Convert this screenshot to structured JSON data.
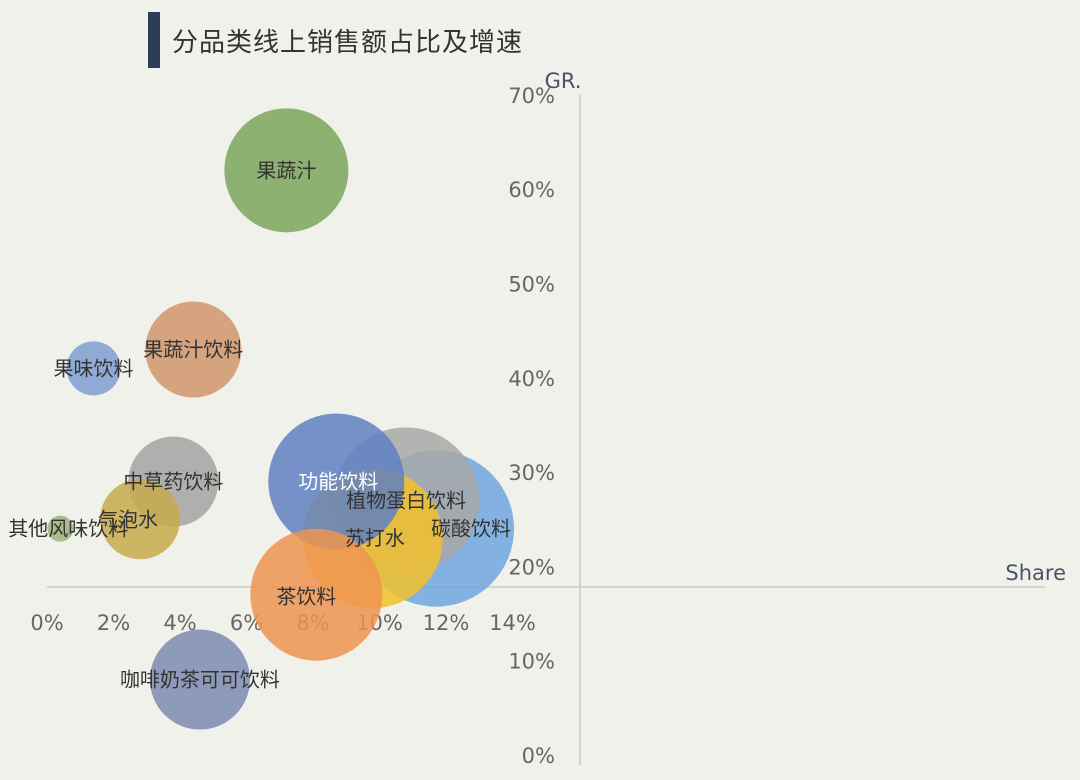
{
  "page": {
    "title": "分品类线上销售额占比及增速"
  },
  "chart_data": {
    "type": "scatter",
    "title": "分品类线上销售额占比及增速",
    "xlabel": "Share",
    "ylabel": "GR.",
    "xlim": [
      0,
      15
    ],
    "ylim": [
      0,
      70
    ],
    "x_ticks": [
      "0%",
      "2%",
      "4%",
      "6%",
      "8%",
      "10%",
      "12%",
      "14%"
    ],
    "y_ticks": [
      "0%",
      "10%",
      "20%",
      "30%",
      "40%",
      "50%",
      "60%",
      "70%"
    ],
    "points": [
      {
        "name": "果蔬汁",
        "x": 7.2,
        "y": 62,
        "color": "#7aa65a"
      },
      {
        "name": "果蔬汁饮料",
        "x": 4.4,
        "y": 43,
        "color": "#d0956b"
      },
      {
        "name": "果味饮料",
        "x": 1.4,
        "y": 41,
        "color": "#7e9fd1"
      },
      {
        "name": "中草药饮料",
        "x": 3.8,
        "y": 29,
        "color": "#a3a3a3"
      },
      {
        "name": "气泡水",
        "x": 2.8,
        "y": 25,
        "color": "#c8aa4c"
      },
      {
        "name": "其他风味饮料",
        "x": 0.4,
        "y": 24,
        "color": "#9db37b"
      },
      {
        "name": "功能饮料",
        "x": 8.7,
        "y": 29,
        "color": "#5f80c2"
      },
      {
        "name": "植物蛋白饮料",
        "x": 10.8,
        "y": 27,
        "color": "#a8a8a8"
      },
      {
        "name": "碳酸饮料",
        "x": 11.7,
        "y": 24,
        "color": "#6ea6e0"
      },
      {
        "name": "苏打水",
        "x": 9.8,
        "y": 23,
        "color": "#f2c12a"
      },
      {
        "name": "茶饮料",
        "x": 8.1,
        "y": 17,
        "color": "#ee9450"
      },
      {
        "name": "咖啡奶茶可可饮料",
        "x": 4.6,
        "y": 8,
        "color": "#7d8bb2"
      }
    ]
  }
}
